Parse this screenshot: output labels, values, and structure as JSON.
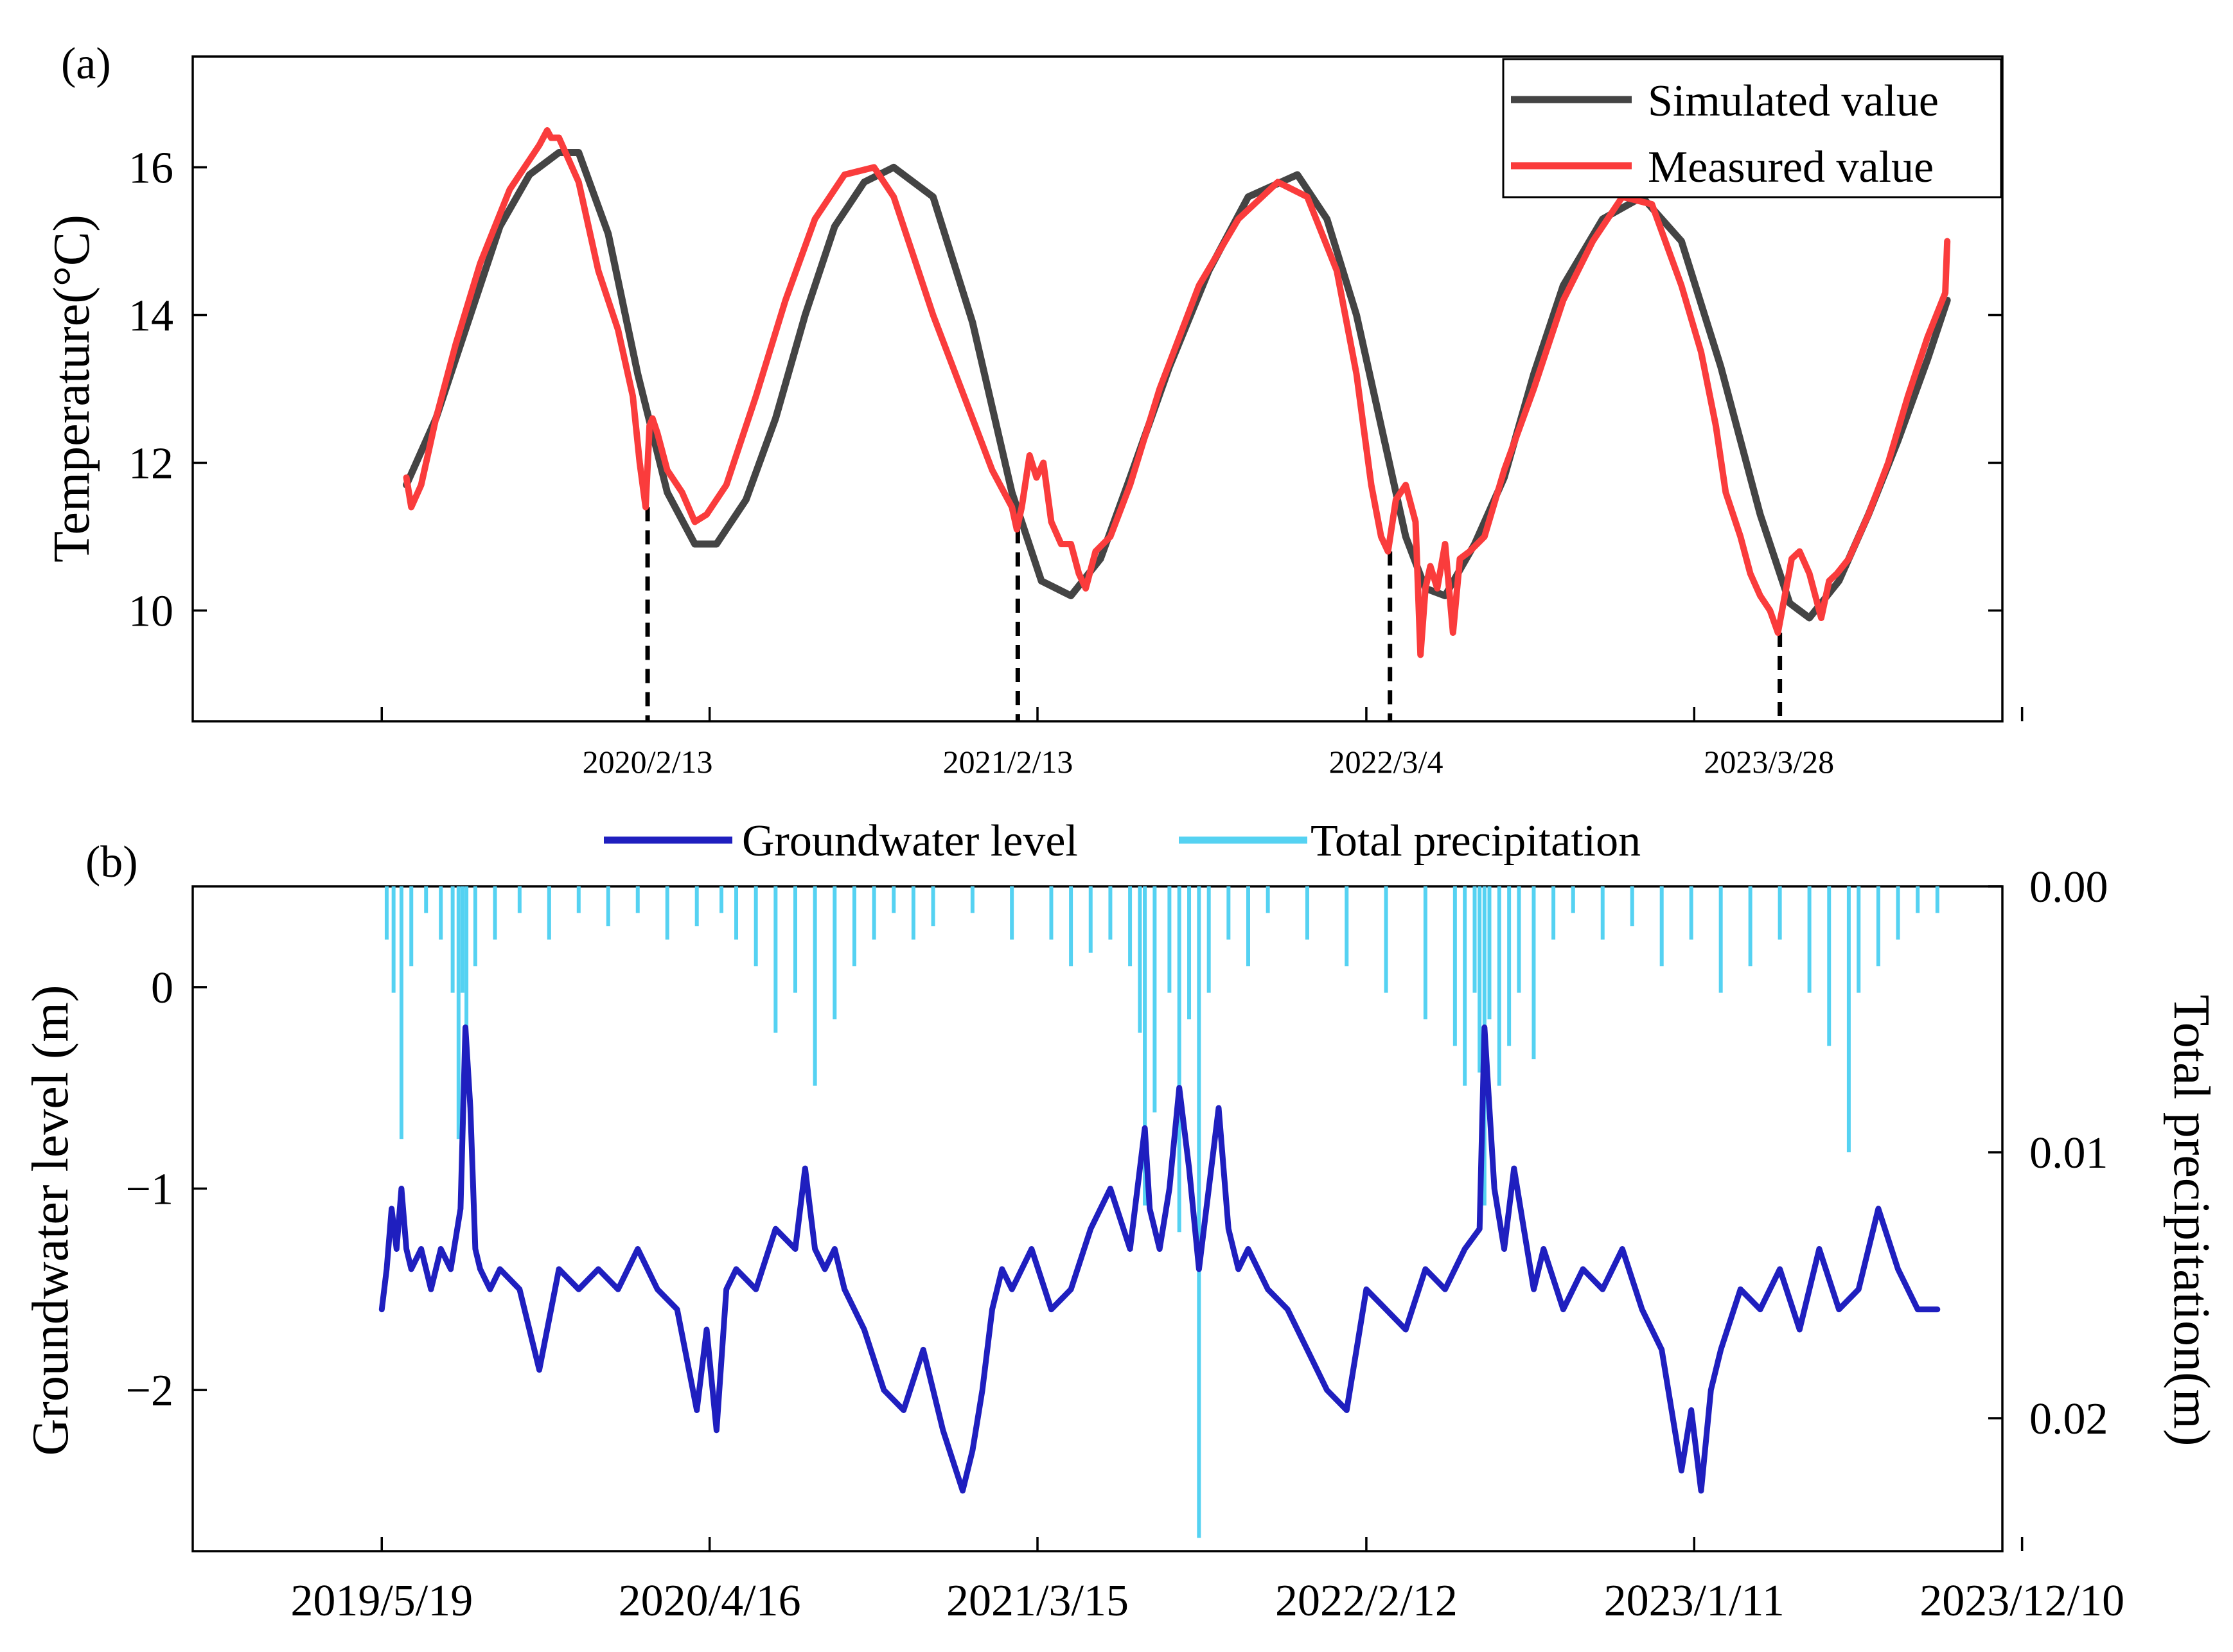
{
  "figure": {
    "panel_a_label": "(a)",
    "panel_b_label": "(b)",
    "colors": {
      "simulated": "#444444",
      "measured": "#fa3c3c",
      "groundwater": "#1f1fbf",
      "precipitation": "#55d2f2",
      "dashed": "#000000"
    }
  },
  "chart_data": [
    {
      "type": "line",
      "title": "(a)",
      "xlabel": "",
      "ylabel": "Temperature(°C)",
      "xlim_days": [
        -192,
        1646
      ],
      "ylim": [
        8.5,
        17.5
      ],
      "yticks": [
        10,
        12,
        14,
        16
      ],
      "xtick_labels": [
        {
          "label": "2020/2/13",
          "day": 270
        },
        {
          "label": "2021/2/13",
          "day": 636
        },
        {
          "label": "2022/3/4",
          "day": 1020
        },
        {
          "label": "2023/3/28",
          "day": 1409
        }
      ],
      "dashed_markers": [
        {
          "day": 270,
          "value": 11.4
        },
        {
          "day": 646,
          "value": 11.1
        },
        {
          "day": 1024,
          "value": 10.8
        },
        {
          "day": 1420,
          "value": 9.7
        }
      ],
      "legend": {
        "position": "top-right",
        "entries": [
          "Simulated value",
          "Measured value"
        ]
      },
      "series": [
        {
          "name": "Simulated value",
          "x": [
            25,
            55,
            90,
            120,
            150,
            180,
            200,
            230,
            260,
            290,
            318,
            340,
            370,
            400,
            430,
            460,
            490,
            520,
            560,
            600,
            640,
            670,
            700,
            730,
            760,
            800,
            840,
            880,
            930,
            960,
            990,
            1020,
            1040,
            1060,
            1080,
            1110,
            1140,
            1170,
            1200,
            1240,
            1280,
            1320,
            1360,
            1400,
            1430,
            1450,
            1480,
            1510,
            1540,
            1570,
            1590
          ],
          "values": [
            11.7,
            12.6,
            14.0,
            15.2,
            15.9,
            16.2,
            16.2,
            15.1,
            13.2,
            11.6,
            10.9,
            10.9,
            11.5,
            12.6,
            14.0,
            15.2,
            15.8,
            16.0,
            15.6,
            13.9,
            11.6,
            10.4,
            10.2,
            10.7,
            11.8,
            13.3,
            14.6,
            15.6,
            15.9,
            15.3,
            14.0,
            12.2,
            11.0,
            10.3,
            10.2,
            10.9,
            11.8,
            13.2,
            14.4,
            15.3,
            15.6,
            15.0,
            13.3,
            11.3,
            10.1,
            9.9,
            10.4,
            11.3,
            12.3,
            13.4,
            14.2
          ]
        },
        {
          "name": "Measured value",
          "x": [
            25,
            30,
            40,
            55,
            75,
            100,
            130,
            160,
            168,
            172,
            180,
            200,
            220,
            240,
            255,
            262,
            268,
            272,
            275,
            280,
            290,
            305,
            318,
            330,
            350,
            380,
            410,
            440,
            470,
            500,
            520,
            540,
            560,
            580,
            600,
            620,
            640,
            645,
            650,
            658,
            665,
            672,
            680,
            690,
            700,
            708,
            715,
            725,
            740,
            760,
            790,
            830,
            870,
            910,
            940,
            970,
            990,
            1005,
            1015,
            1022,
            1030,
            1040,
            1050,
            1055,
            1060,
            1065,
            1072,
            1080,
            1088,
            1095,
            1105,
            1120,
            1140,
            1170,
            1200,
            1230,
            1260,
            1290,
            1320,
            1340,
            1355,
            1365,
            1380,
            1390,
            1400,
            1410,
            1418,
            1425,
            1432,
            1440,
            1450,
            1462,
            1470,
            1478,
            1490,
            1510,
            1530,
            1550,
            1570,
            1588,
            1590
          ],
          "values": [
            11.8,
            11.4,
            11.7,
            12.6,
            13.6,
            14.7,
            15.7,
            16.3,
            16.5,
            16.4,
            16.4,
            15.8,
            14.6,
            13.8,
            12.9,
            12.0,
            11.4,
            12.5,
            12.6,
            12.4,
            11.9,
            11.6,
            11.2,
            11.3,
            11.7,
            12.9,
            14.2,
            15.3,
            15.9,
            16.0,
            15.6,
            14.8,
            14.0,
            13.3,
            12.6,
            11.9,
            11.4,
            11.1,
            11.4,
            12.1,
            11.8,
            12.0,
            11.2,
            10.9,
            10.9,
            10.5,
            10.3,
            10.8,
            11.0,
            11.7,
            13.0,
            14.4,
            15.3,
            15.8,
            15.6,
            14.6,
            13.2,
            11.7,
            11.0,
            10.8,
            11.5,
            11.7,
            11.2,
            9.4,
            10.3,
            10.6,
            10.3,
            10.9,
            9.7,
            10.7,
            10.8,
            11.0,
            11.9,
            13.0,
            14.2,
            15.0,
            15.6,
            15.5,
            14.4,
            13.5,
            12.5,
            11.6,
            11.0,
            10.5,
            10.2,
            10.0,
            9.7,
            10.2,
            10.7,
            10.8,
            10.5,
            9.9,
            10.4,
            10.5,
            10.7,
            11.3,
            12.0,
            12.9,
            13.7,
            14.3,
            15.0
          ]
        }
      ]
    },
    {
      "type": "line",
      "title": "(b)",
      "xlabel": "",
      "ylabel": "Groundwater level (m)",
      "ylabel_right": "Total precipitation(m)",
      "xlim_days": [
        -192,
        1646
      ],
      "ylim": [
        -2.8,
        0.5
      ],
      "yticks": [
        -2,
        -1,
        0
      ],
      "ytick_labels": [
        "−2",
        "−1",
        "0"
      ],
      "ylim_right": [
        0.025,
        0.0
      ],
      "yticks_right": [
        0.0,
        0.01,
        0.02
      ],
      "ytick_labels_right": [
        "0.00",
        "0.01",
        "0.02"
      ],
      "xtick_labels": [
        {
          "label": "2019/5/19",
          "day": 0
        },
        {
          "label": "2020/4/16",
          "day": 333
        },
        {
          "label": "2021/3/15",
          "day": 666
        },
        {
          "label": "2022/2/12",
          "day": 1000
        },
        {
          "label": "2023/1/11",
          "day": 1333
        },
        {
          "label": "2023/12/10",
          "day": 1666
        }
      ],
      "legend": {
        "position": "top-center",
        "entries": [
          "Groundwater level",
          "Total precipitation"
        ]
      },
      "series": [
        {
          "name": "Groundwater level",
          "x": [
            0,
            5,
            10,
            15,
            20,
            25,
            30,
            40,
            50,
            60,
            70,
            80,
            85,
            90,
            95,
            100,
            110,
            120,
            140,
            160,
            180,
            200,
            220,
            240,
            260,
            280,
            300,
            320,
            330,
            340,
            350,
            360,
            380,
            400,
            420,
            430,
            440,
            450,
            460,
            470,
            490,
            510,
            530,
            550,
            570,
            590,
            600,
            610,
            620,
            630,
            640,
            660,
            680,
            700,
            720,
            740,
            760,
            775,
            780,
            790,
            800,
            810,
            820,
            830,
            840,
            850,
            860,
            870,
            880,
            900,
            920,
            940,
            960,
            980,
            990,
            1000,
            1020,
            1040,
            1060,
            1080,
            1100,
            1115,
            1120,
            1130,
            1140,
            1150,
            1160,
            1170,
            1180,
            1200,
            1220,
            1240,
            1260,
            1280,
            1300,
            1320,
            1330,
            1340,
            1350,
            1360,
            1380,
            1400,
            1420,
            1440,
            1460,
            1480,
            1500,
            1520,
            1540,
            1560,
            1580,
            1560
          ],
          "values": [
            -1.6,
            -1.4,
            -1.1,
            -1.3,
            -1.0,
            -1.3,
            -1.4,
            -1.3,
            -1.5,
            -1.3,
            -1.4,
            -1.1,
            -0.2,
            -0.6,
            -1.3,
            -1.4,
            -1.5,
            -1.4,
            -1.5,
            -1.9,
            -1.4,
            -1.5,
            -1.4,
            -1.5,
            -1.3,
            -1.5,
            -1.6,
            -2.1,
            -1.7,
            -2.2,
            -1.5,
            -1.4,
            -1.5,
            -1.2,
            -1.3,
            -0.9,
            -1.3,
            -1.4,
            -1.3,
            -1.5,
            -1.7,
            -2.0,
            -2.1,
            -1.8,
            -2.2,
            -2.5,
            -2.3,
            -2.0,
            -1.6,
            -1.4,
            -1.5,
            -1.3,
            -1.6,
            -1.5,
            -1.2,
            -1.0,
            -1.3,
            -0.7,
            -1.1,
            -1.3,
            -1.0,
            -0.5,
            -0.9,
            -1.4,
            -1.0,
            -0.6,
            -1.2,
            -1.4,
            -1.3,
            -1.5,
            -1.6,
            -1.8,
            -2.0,
            -2.1,
            -1.8,
            -1.5,
            -1.6,
            -1.7,
            -1.4,
            -1.5,
            -1.3,
            -1.2,
            -0.2,
            -1.0,
            -1.3,
            -0.9,
            -1.2,
            -1.5,
            -1.3,
            -1.6,
            -1.4,
            -1.5,
            -1.3,
            -1.6,
            -1.8,
            -2.4,
            -2.1,
            -2.5,
            -2.0,
            -1.8,
            -1.5,
            -1.6,
            -1.4,
            -1.7,
            -1.3,
            -1.6,
            -1.5,
            -1.1,
            -1.4,
            -1.6,
            -1.6,
            -1.6
          ]
        },
        {
          "name": "Total precipitation",
          "x": [
            5,
            12,
            20,
            30,
            45,
            60,
            72,
            78,
            82,
            86,
            95,
            115,
            140,
            170,
            200,
            230,
            260,
            290,
            320,
            345,
            360,
            380,
            400,
            420,
            440,
            460,
            480,
            500,
            520,
            540,
            560,
            600,
            640,
            680,
            700,
            720,
            740,
            760,
            770,
            775,
            785,
            800,
            810,
            820,
            830,
            840,
            860,
            880,
            900,
            940,
            980,
            1020,
            1060,
            1090,
            1100,
            1110,
            1115,
            1120,
            1125,
            1135,
            1145,
            1155,
            1170,
            1190,
            1210,
            1240,
            1270,
            1300,
            1330,
            1360,
            1390,
            1420,
            1450,
            1470,
            1490,
            1500,
            1520,
            1540,
            1560,
            1580
          ],
          "values": [
            0.002,
            0.004,
            0.0095,
            0.003,
            0.001,
            0.002,
            0.004,
            0.0095,
            0.004,
            0.0075,
            0.003,
            0.002,
            0.001,
            0.002,
            0.001,
            0.0015,
            0.001,
            0.002,
            0.0015,
            0.001,
            0.002,
            0.003,
            0.0055,
            0.004,
            0.0075,
            0.005,
            0.003,
            0.002,
            0.001,
            0.002,
            0.0015,
            0.001,
            0.002,
            0.002,
            0.003,
            0.0025,
            0.002,
            0.003,
            0.0055,
            0.012,
            0.0085,
            0.004,
            0.013,
            0.005,
            0.0245,
            0.004,
            0.002,
            0.003,
            0.001,
            0.002,
            0.003,
            0.004,
            0.005,
            0.006,
            0.0075,
            0.004,
            0.007,
            0.012,
            0.005,
            0.0075,
            0.006,
            0.004,
            0.0065,
            0.002,
            0.001,
            0.002,
            0.0015,
            0.003,
            0.002,
            0.004,
            0.003,
            0.002,
            0.004,
            0.006,
            0.01,
            0.004,
            0.003,
            0.002,
            0.001,
            0.001
          ]
        }
      ]
    }
  ]
}
